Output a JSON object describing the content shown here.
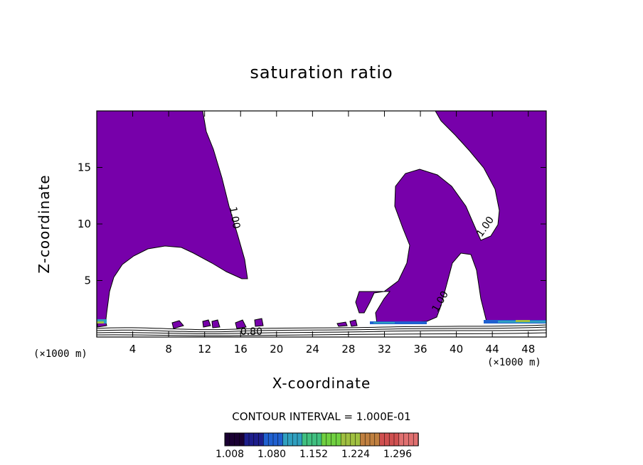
{
  "chart_data": {
    "type": "heatmap",
    "title": "saturation ratio",
    "xlabel": "X-coordinate",
    "ylabel": "Z-coordinate",
    "x_unit_left": "(×1000 m)",
    "x_unit_right": "(×1000 m)",
    "xlim": [
      0,
      50
    ],
    "ylim": [
      0,
      20
    ],
    "x_ticks": [
      4,
      8,
      12,
      16,
      20,
      24,
      28,
      32,
      36,
      40,
      44,
      48
    ],
    "y_ticks": [
      5,
      10,
      15
    ],
    "contour_interval_text": "CONTOUR INTERVAL = 1.000E-01",
    "contour_labels": [
      {
        "text": "1.00",
        "x": 15.0,
        "z": 10.5
      },
      {
        "text": "1.00",
        "x": 43.5,
        "z": 9.6
      },
      {
        "text": "1.00",
        "x": 38.5,
        "z": 3.0
      },
      {
        "text": "0.80",
        "x": 17.2,
        "z": 0.2
      }
    ],
    "fill_color": "#7700aa",
    "colorbar": {
      "labels": [
        "1.008",
        "1.080",
        "1.152",
        "1.224",
        "1.296"
      ],
      "min": 1.008,
      "max": 1.296,
      "colors": [
        "#1a0033",
        "#1e1e8c",
        "#2060d0",
        "#30a0c0",
        "#40c080",
        "#70d040",
        "#a0c040",
        "#c08040",
        "#d05050",
        "#e07070"
      ]
    }
  }
}
